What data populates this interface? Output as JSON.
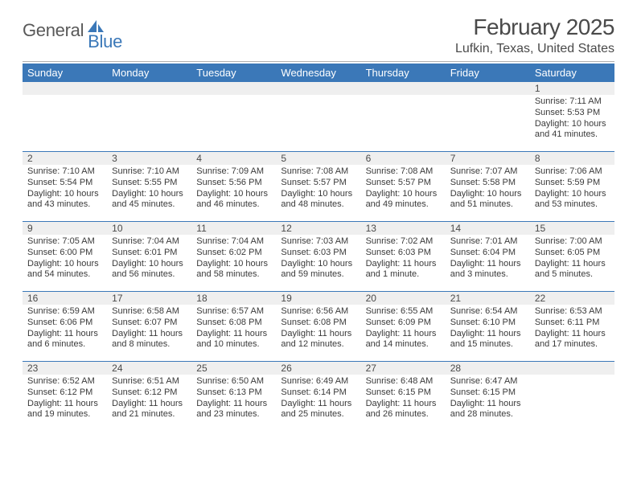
{
  "logo": {
    "text1": "General",
    "text2": "Blue"
  },
  "title": "February 2025",
  "location": "Lufkin, Texas, United States",
  "colors": {
    "header_bg": "#3b78b8",
    "header_text": "#ffffff",
    "daynum_bg": "#efefef",
    "rule": "#b0b0b0",
    "week_divider": "#3b78b8",
    "body_text": "#3a3a3a",
    "title_text": "#4a4a4a"
  },
  "day_names": [
    "Sunday",
    "Monday",
    "Tuesday",
    "Wednesday",
    "Thursday",
    "Friday",
    "Saturday"
  ],
  "weeks": [
    [
      {
        "blank": true
      },
      {
        "blank": true
      },
      {
        "blank": true
      },
      {
        "blank": true
      },
      {
        "blank": true
      },
      {
        "blank": true
      },
      {
        "n": "1",
        "sunrise": "Sunrise: 7:11 AM",
        "sunset": "Sunset: 5:53 PM",
        "day1": "Daylight: 10 hours",
        "day2": "and 41 minutes."
      }
    ],
    [
      {
        "n": "2",
        "sunrise": "Sunrise: 7:10 AM",
        "sunset": "Sunset: 5:54 PM",
        "day1": "Daylight: 10 hours",
        "day2": "and 43 minutes."
      },
      {
        "n": "3",
        "sunrise": "Sunrise: 7:10 AM",
        "sunset": "Sunset: 5:55 PM",
        "day1": "Daylight: 10 hours",
        "day2": "and 45 minutes."
      },
      {
        "n": "4",
        "sunrise": "Sunrise: 7:09 AM",
        "sunset": "Sunset: 5:56 PM",
        "day1": "Daylight: 10 hours",
        "day2": "and 46 minutes."
      },
      {
        "n": "5",
        "sunrise": "Sunrise: 7:08 AM",
        "sunset": "Sunset: 5:57 PM",
        "day1": "Daylight: 10 hours",
        "day2": "and 48 minutes."
      },
      {
        "n": "6",
        "sunrise": "Sunrise: 7:08 AM",
        "sunset": "Sunset: 5:57 PM",
        "day1": "Daylight: 10 hours",
        "day2": "and 49 minutes."
      },
      {
        "n": "7",
        "sunrise": "Sunrise: 7:07 AM",
        "sunset": "Sunset: 5:58 PM",
        "day1": "Daylight: 10 hours",
        "day2": "and 51 minutes."
      },
      {
        "n": "8",
        "sunrise": "Sunrise: 7:06 AM",
        "sunset": "Sunset: 5:59 PM",
        "day1": "Daylight: 10 hours",
        "day2": "and 53 minutes."
      }
    ],
    [
      {
        "n": "9",
        "sunrise": "Sunrise: 7:05 AM",
        "sunset": "Sunset: 6:00 PM",
        "day1": "Daylight: 10 hours",
        "day2": "and 54 minutes."
      },
      {
        "n": "10",
        "sunrise": "Sunrise: 7:04 AM",
        "sunset": "Sunset: 6:01 PM",
        "day1": "Daylight: 10 hours",
        "day2": "and 56 minutes."
      },
      {
        "n": "11",
        "sunrise": "Sunrise: 7:04 AM",
        "sunset": "Sunset: 6:02 PM",
        "day1": "Daylight: 10 hours",
        "day2": "and 58 minutes."
      },
      {
        "n": "12",
        "sunrise": "Sunrise: 7:03 AM",
        "sunset": "Sunset: 6:03 PM",
        "day1": "Daylight: 10 hours",
        "day2": "and 59 minutes."
      },
      {
        "n": "13",
        "sunrise": "Sunrise: 7:02 AM",
        "sunset": "Sunset: 6:03 PM",
        "day1": "Daylight: 11 hours",
        "day2": "and 1 minute."
      },
      {
        "n": "14",
        "sunrise": "Sunrise: 7:01 AM",
        "sunset": "Sunset: 6:04 PM",
        "day1": "Daylight: 11 hours",
        "day2": "and 3 minutes."
      },
      {
        "n": "15",
        "sunrise": "Sunrise: 7:00 AM",
        "sunset": "Sunset: 6:05 PM",
        "day1": "Daylight: 11 hours",
        "day2": "and 5 minutes."
      }
    ],
    [
      {
        "n": "16",
        "sunrise": "Sunrise: 6:59 AM",
        "sunset": "Sunset: 6:06 PM",
        "day1": "Daylight: 11 hours",
        "day2": "and 6 minutes."
      },
      {
        "n": "17",
        "sunrise": "Sunrise: 6:58 AM",
        "sunset": "Sunset: 6:07 PM",
        "day1": "Daylight: 11 hours",
        "day2": "and 8 minutes."
      },
      {
        "n": "18",
        "sunrise": "Sunrise: 6:57 AM",
        "sunset": "Sunset: 6:08 PM",
        "day1": "Daylight: 11 hours",
        "day2": "and 10 minutes."
      },
      {
        "n": "19",
        "sunrise": "Sunrise: 6:56 AM",
        "sunset": "Sunset: 6:08 PM",
        "day1": "Daylight: 11 hours",
        "day2": "and 12 minutes."
      },
      {
        "n": "20",
        "sunrise": "Sunrise: 6:55 AM",
        "sunset": "Sunset: 6:09 PM",
        "day1": "Daylight: 11 hours",
        "day2": "and 14 minutes."
      },
      {
        "n": "21",
        "sunrise": "Sunrise: 6:54 AM",
        "sunset": "Sunset: 6:10 PM",
        "day1": "Daylight: 11 hours",
        "day2": "and 15 minutes."
      },
      {
        "n": "22",
        "sunrise": "Sunrise: 6:53 AM",
        "sunset": "Sunset: 6:11 PM",
        "day1": "Daylight: 11 hours",
        "day2": "and 17 minutes."
      }
    ],
    [
      {
        "n": "23",
        "sunrise": "Sunrise: 6:52 AM",
        "sunset": "Sunset: 6:12 PM",
        "day1": "Daylight: 11 hours",
        "day2": "and 19 minutes."
      },
      {
        "n": "24",
        "sunrise": "Sunrise: 6:51 AM",
        "sunset": "Sunset: 6:12 PM",
        "day1": "Daylight: 11 hours",
        "day2": "and 21 minutes."
      },
      {
        "n": "25",
        "sunrise": "Sunrise: 6:50 AM",
        "sunset": "Sunset: 6:13 PM",
        "day1": "Daylight: 11 hours",
        "day2": "and 23 minutes."
      },
      {
        "n": "26",
        "sunrise": "Sunrise: 6:49 AM",
        "sunset": "Sunset: 6:14 PM",
        "day1": "Daylight: 11 hours",
        "day2": "and 25 minutes."
      },
      {
        "n": "27",
        "sunrise": "Sunrise: 6:48 AM",
        "sunset": "Sunset: 6:15 PM",
        "day1": "Daylight: 11 hours",
        "day2": "and 26 minutes."
      },
      {
        "n": "28",
        "sunrise": "Sunrise: 6:47 AM",
        "sunset": "Sunset: 6:15 PM",
        "day1": "Daylight: 11 hours",
        "day2": "and 28 minutes."
      },
      {
        "blank": true
      }
    ]
  ]
}
